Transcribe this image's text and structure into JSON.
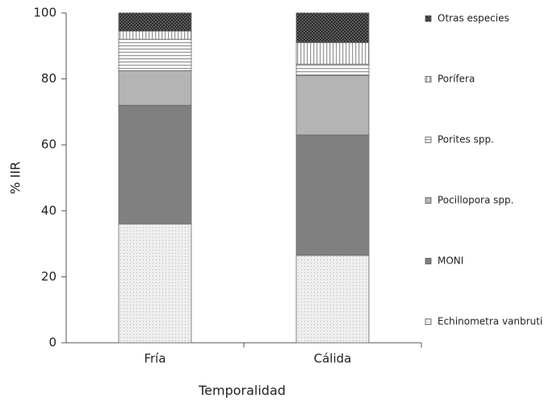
{
  "chart_data": {
    "type": "stacked_bar",
    "x_label": "Temporalidad",
    "y_label": "% IIR",
    "categories": [
      "Fría",
      "Cálida"
    ],
    "series": [
      {
        "name": "Echinometra  vanbruti",
        "color": "#eeeeee",
        "pattern": "dots",
        "values": [
          36,
          26.5
        ]
      },
      {
        "name": "MONI",
        "color": "#808080",
        "pattern": "solid",
        "values": [
          36,
          36.5
        ]
      },
      {
        "name": "Pocillopora spp.",
        "color": "#b4b4b4",
        "pattern": "solid",
        "values": [
          10.5,
          18
        ]
      },
      {
        "name": "Porites spp.",
        "color": "#ffffff",
        "pattern": "hlines",
        "values": [
          9.5,
          3.5
        ]
      },
      {
        "name": "Porífera",
        "color": "#ffffff",
        "pattern": "vlines",
        "values": [
          2.5,
          6.5
        ]
      },
      {
        "name": "Otras especies",
        "color": "#5a5a5a",
        "pattern": "checker",
        "values": [
          5.5,
          9
        ]
      }
    ],
    "ylim": [
      0,
      100
    ],
    "yticks": [
      0,
      20,
      40,
      60,
      80,
      100
    ],
    "legend": "right"
  }
}
